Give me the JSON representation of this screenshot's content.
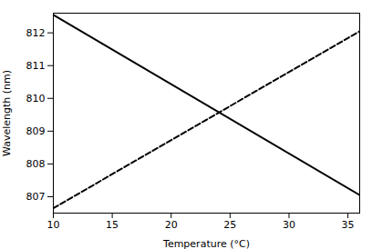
{
  "chart_data": {
    "type": "line",
    "x": [
      10,
      36
    ],
    "series": [
      {
        "color": "#000000",
        "line_style": "solid",
        "values": [
          812.55,
          807.05
        ]
      },
      {
        "color": "#000000",
        "line_style": "dashed",
        "values": [
          806.65,
          812.05
        ]
      }
    ],
    "xlim": [
      10,
      36
    ],
    "ylim": [
      806.5,
      812.6
    ],
    "xticks": [
      10,
      15,
      20,
      25,
      30,
      35
    ],
    "yticks": [
      807,
      808,
      809,
      810,
      811,
      812
    ],
    "xlabel": "Temperature (°C)",
    "ylabel": "Wavelength (nm)",
    "grid": false
  }
}
